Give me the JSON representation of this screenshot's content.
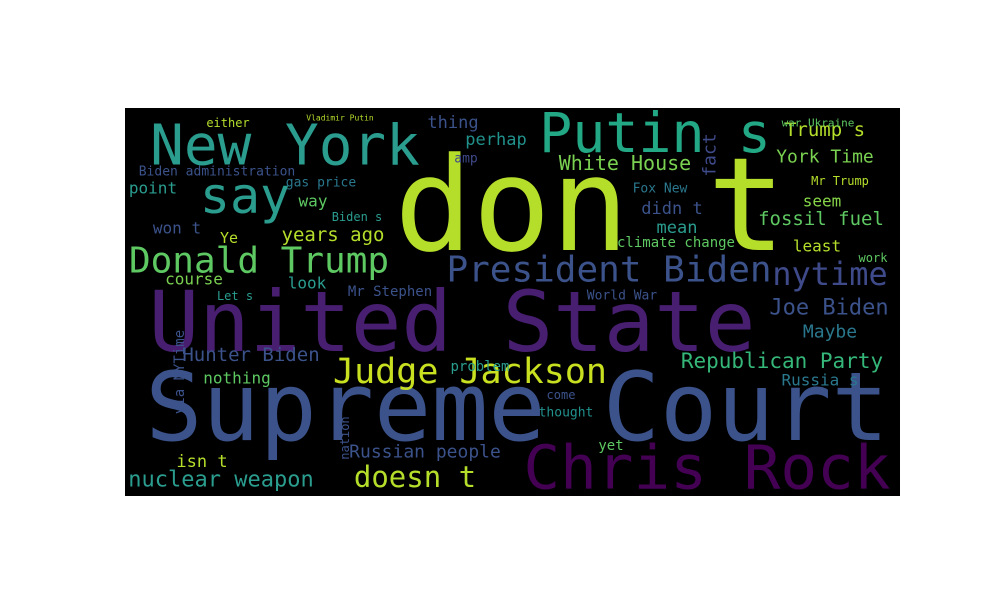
{
  "words": [
    {
      "text": "don t",
      "color": "#b5de2b"
    },
    {
      "text": "United State",
      "color": "#481f70"
    },
    {
      "text": "Supreme Court",
      "color": "#3b528b"
    },
    {
      "text": "Chris Rock",
      "color": "#440154"
    },
    {
      "text": "New York",
      "color": "#2a9d8f"
    },
    {
      "text": "Putin s",
      "color": "#22a884"
    },
    {
      "text": "say",
      "color": "#2a9d8f"
    },
    {
      "text": "Donald Trump",
      "color": "#5ec962"
    },
    {
      "text": "President Biden",
      "color": "#3b528b"
    },
    {
      "text": "nytime",
      "color": "#3e4a89"
    },
    {
      "text": "Judge Jackson",
      "color": "#c8e020"
    },
    {
      "text": "doesn t",
      "color": "#b5de2b"
    },
    {
      "text": "Hunter Biden",
      "color": "#3b528b"
    },
    {
      "text": "Republican Party",
      "color": "#35b779"
    },
    {
      "text": "Russia s",
      "color": "#2a788e"
    },
    {
      "text": "Joe Biden",
      "color": "#3b528b"
    },
    {
      "text": "Maybe",
      "color": "#2a788e"
    },
    {
      "text": "Trump s",
      "color": "#b5de2b"
    },
    {
      "text": "York Time",
      "color": "#7ad151"
    },
    {
      "text": "White House",
      "color": "#7ad151"
    },
    {
      "text": "fossil fuel",
      "color": "#5ec962"
    },
    {
      "text": "seem",
      "color": "#86d549"
    },
    {
      "text": "least",
      "color": "#b5de2b"
    },
    {
      "text": "work",
      "color": "#5ec962"
    },
    {
      "text": "thing",
      "color": "#3b528b"
    },
    {
      "text": "perhap",
      "color": "#21918c"
    },
    {
      "text": "amp",
      "color": "#3e4a89"
    },
    {
      "text": "fact",
      "color": "#3e4a89"
    },
    {
      "text": "Fox New",
      "color": "#2a788e"
    },
    {
      "text": "Mr Trump",
      "color": "#b5de2b"
    },
    {
      "text": "didn t",
      "color": "#3b528b"
    },
    {
      "text": "mean",
      "color": "#2a9d8f"
    },
    {
      "text": "climate change",
      "color": "#5ec962"
    },
    {
      "text": "years ago",
      "color": "#b5de2b"
    },
    {
      "text": "way",
      "color": "#5ec962"
    },
    {
      "text": "gas price",
      "color": "#2a788e"
    },
    {
      "text": "point",
      "color": "#2a9d8f"
    },
    {
      "text": "Biden administration",
      "color": "#3b528b"
    },
    {
      "text": "won t",
      "color": "#3b528b"
    },
    {
      "text": "Ye",
      "color": "#b5de2b"
    },
    {
      "text": "Biden s",
      "color": "#2a9d8f"
    },
    {
      "text": "course",
      "color": "#7ad151"
    },
    {
      "text": "look",
      "color": "#2a9d8f"
    },
    {
      "text": "Mr Stephen",
      "color": "#3b528b"
    },
    {
      "text": "Let s",
      "color": "#2a9d8f"
    },
    {
      "text": "World War",
      "color": "#3b528b"
    },
    {
      "text": "nothing",
      "color": "#5ec962"
    },
    {
      "text": "problem",
      "color": "#2a9d8f"
    },
    {
      "text": "thought",
      "color": "#21918c"
    },
    {
      "text": "come",
      "color": "#3b528b"
    },
    {
      "text": "isn t",
      "color": "#b5de2b"
    },
    {
      "text": "nuclear weapon",
      "color": "#2a9d8f"
    },
    {
      "text": "Russian people",
      "color": "#3b528b"
    },
    {
      "text": "yet",
      "color": "#5ec962"
    },
    {
      "text": "via NYTime",
      "color": "#3b528b"
    },
    {
      "text": "nation",
      "color": "#3b528b"
    },
    {
      "text": "either",
      "color": "#b5de2b"
    },
    {
      "text": "war Ukraine",
      "color": "#5ec962"
    },
    {
      "text": "Vladimir Putin",
      "color": "#b5de2b"
    }
  ]
}
